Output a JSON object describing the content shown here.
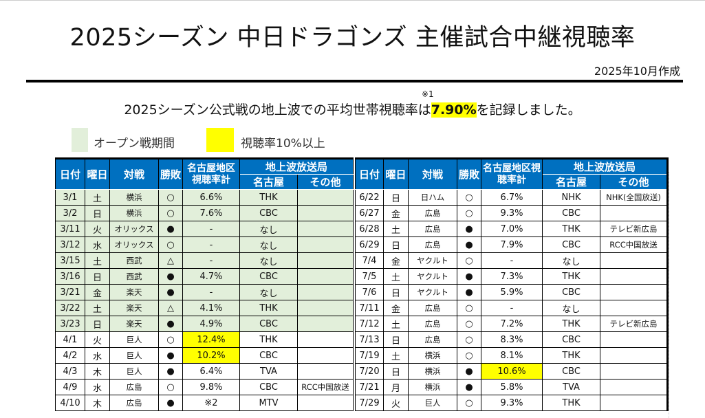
{
  "header": {
    "title": "2025シーズン 中日ドラゴンズ 主催試合中継視聴率",
    "date": "2025年10月作成",
    "note_mark": "※1",
    "summary_before": "2025シーズン公式戦の地上波での平均世帯視聴率は",
    "summary_value": "7.90%",
    "summary_after": "を記録しました。"
  },
  "legend": [
    {
      "label": "オープン戦期間",
      "color": "#e2efda"
    },
    {
      "label": "視聴率10%以上",
      "color": "#ffff00"
    }
  ],
  "columns": {
    "date": "日付",
    "weekday": "曜日",
    "opponent": "対戦",
    "result": "勝敗",
    "rating": "名古屋地区視聴率計",
    "broadcaster_group": "地上波放送局",
    "nagoya": "名古屋",
    "other": "その他"
  },
  "tables": [
    {
      "rows": [
        {
          "date": "3/1",
          "day": "土",
          "opp": "横浜",
          "res": "○",
          "rating": "6.6%",
          "nagoya": "THK",
          "other": "",
          "open": true
        },
        {
          "date": "3/2",
          "day": "日",
          "opp": "横浜",
          "res": "○",
          "rating": "7.6%",
          "nagoya": "CBC",
          "other": "",
          "open": true
        },
        {
          "date": "3/11",
          "day": "火",
          "opp": "オリックス",
          "res": "●",
          "rating": "-",
          "nagoya": "なし",
          "other": "",
          "open": true
        },
        {
          "date": "3/12",
          "day": "水",
          "opp": "オリックス",
          "res": "○",
          "rating": "-",
          "nagoya": "なし",
          "other": "",
          "open": true
        },
        {
          "date": "3/15",
          "day": "土",
          "opp": "西武",
          "res": "△",
          "rating": "-",
          "nagoya": "なし",
          "other": "",
          "open": true
        },
        {
          "date": "3/16",
          "day": "日",
          "opp": "西武",
          "res": "●",
          "rating": "4.7%",
          "nagoya": "CBC",
          "other": "",
          "open": true
        },
        {
          "date": "3/21",
          "day": "金",
          "opp": "楽天",
          "res": "●",
          "rating": "-",
          "nagoya": "なし",
          "other": "",
          "open": true
        },
        {
          "date": "3/22",
          "day": "土",
          "opp": "楽天",
          "res": "△",
          "rating": "4.1%",
          "nagoya": "THK",
          "other": "",
          "open": true
        },
        {
          "date": "3/23",
          "day": "日",
          "opp": "楽天",
          "res": "●",
          "rating": "4.9%",
          "nagoya": "CBC",
          "other": "",
          "open": true
        },
        {
          "date": "4/1",
          "day": "火",
          "opp": "巨人",
          "res": "○",
          "rating": "12.4%",
          "nagoya": "THK",
          "other": "",
          "high": true
        },
        {
          "date": "4/2",
          "day": "水",
          "opp": "巨人",
          "res": "●",
          "rating": "10.2%",
          "nagoya": "CBC",
          "other": "",
          "high": true
        },
        {
          "date": "4/3",
          "day": "木",
          "opp": "巨人",
          "res": "●",
          "rating": "6.4%",
          "nagoya": "TVA",
          "other": ""
        },
        {
          "date": "4/9",
          "day": "水",
          "opp": "広島",
          "res": "○",
          "rating": "9.8%",
          "nagoya": "CBC",
          "other": "RCC中国放送"
        },
        {
          "date": "4/10",
          "day": "木",
          "opp": "広島",
          "res": "●",
          "rating": "※2",
          "nagoya": "MTV",
          "other": ""
        }
      ]
    },
    {
      "rows": [
        {
          "date": "6/22",
          "day": "日",
          "opp": "日ハム",
          "res": "○",
          "rating": "6.7%",
          "nagoya": "NHK",
          "other": "NHK(全国放送)"
        },
        {
          "date": "6/27",
          "day": "金",
          "opp": "広島",
          "res": "○",
          "rating": "9.3%",
          "nagoya": "CBC",
          "other": ""
        },
        {
          "date": "6/28",
          "day": "土",
          "opp": "広島",
          "res": "●",
          "rating": "7.0%",
          "nagoya": "THK",
          "other": "テレビ新広島"
        },
        {
          "date": "6/29",
          "day": "日",
          "opp": "広島",
          "res": "●",
          "rating": "7.9%",
          "nagoya": "CBC",
          "other": "RCC中国放送"
        },
        {
          "date": "7/4",
          "day": "金",
          "opp": "ヤクルト",
          "res": "○",
          "rating": "-",
          "nagoya": "なし",
          "other": ""
        },
        {
          "date": "7/5",
          "day": "土",
          "opp": "ヤクルト",
          "res": "●",
          "rating": "7.3%",
          "nagoya": "THK",
          "other": ""
        },
        {
          "date": "7/6",
          "day": "日",
          "opp": "ヤクルト",
          "res": "●",
          "rating": "5.9%",
          "nagoya": "CBC",
          "other": ""
        },
        {
          "date": "7/11",
          "day": "金",
          "opp": "広島",
          "res": "○",
          "rating": "-",
          "nagoya": "なし",
          "other": ""
        },
        {
          "date": "7/12",
          "day": "土",
          "opp": "広島",
          "res": "○",
          "rating": "7.2%",
          "nagoya": "THK",
          "other": "テレビ新広島"
        },
        {
          "date": "7/13",
          "day": "日",
          "opp": "広島",
          "res": "○",
          "rating": "8.3%",
          "nagoya": "CBC",
          "other": ""
        },
        {
          "date": "7/19",
          "day": "土",
          "opp": "横浜",
          "res": "○",
          "rating": "8.1%",
          "nagoya": "THK",
          "other": ""
        },
        {
          "date": "7/20",
          "day": "日",
          "opp": "横浜",
          "res": "●",
          "rating": "10.6%",
          "nagoya": "CBC",
          "other": "",
          "high": true
        },
        {
          "date": "7/21",
          "day": "月",
          "opp": "横浜",
          "res": "●",
          "rating": "5.8%",
          "nagoya": "TVA",
          "other": ""
        },
        {
          "date": "7/29",
          "day": "火",
          "opp": "巨人",
          "res": "○",
          "rating": "9.3%",
          "nagoya": "THK",
          "other": ""
        }
      ]
    }
  ]
}
